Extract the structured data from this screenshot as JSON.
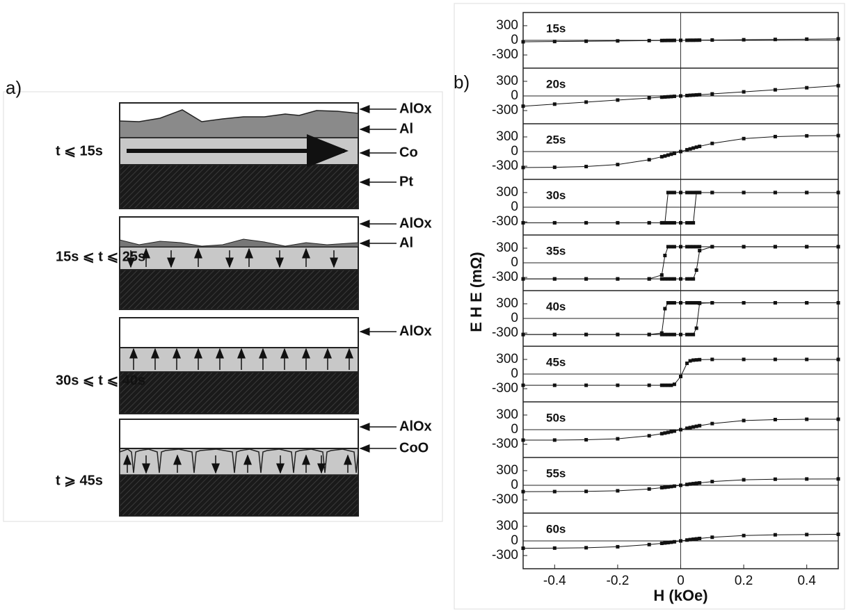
{
  "panel_a": {
    "label": "a)",
    "stacks": [
      {
        "condition": "t ⩽ 15s",
        "layers": [
          "AlOx",
          "Al",
          "Co",
          "Pt"
        ]
      },
      {
        "condition": "15s ⩽ t ⩽ 25s",
        "layers": [
          "AlOx",
          "Al"
        ]
      },
      {
        "condition": "30s ⩽ t ⩽ 40s",
        "layers": [
          "AlOx"
        ]
      },
      {
        "condition": "t ⩾ 45s",
        "layers": [
          "AlOx",
          "CoO"
        ]
      }
    ]
  },
  "chart_data": {
    "type": "line",
    "panel_label": "b)",
    "xlabel": "H (kOe)",
    "ylabel": "E H E (mΩ)",
    "xlim": [
      -0.5,
      0.5
    ],
    "xticks": [
      -0.4,
      -0.2,
      0,
      0.2,
      0.4
    ],
    "ylim": [
      -570,
      570
    ],
    "yticks": [
      300,
      0,
      -300
    ],
    "x": [
      -0.5,
      -0.4,
      -0.3,
      -0.2,
      -0.1,
      -0.06,
      -0.05,
      -0.04,
      -0.03,
      -0.02,
      0,
      0.02,
      0.03,
      0.04,
      0.05,
      0.06,
      0.1,
      0.2,
      0.3,
      0.4,
      0.5
    ],
    "panels": [
      {
        "label": "15s",
        "series": [
          {
            "color": "#111111",
            "values": [
              -30,
              -24,
              -18,
              -12,
              -6,
              -4,
              -3,
              -2,
              -2,
              -1,
              0,
              1,
              2,
              2,
              3,
              4,
              6,
              12,
              18,
              24,
              30
            ]
          }
        ]
      },
      {
        "label": "20s",
        "series": [
          {
            "color": "#111111",
            "values": [
              -210,
              -168,
              -126,
              -84,
              -42,
              -25,
              -21,
              -17,
              -13,
              -8,
              0,
              8,
              13,
              17,
              21,
              25,
              42,
              84,
              126,
              168,
              210
            ]
          }
        ]
      },
      {
        "label": "25s",
        "series": [
          {
            "color": "#111111",
            "values": [
              -327,
              -322,
              -307,
              -266,
              -167,
              -106,
              -90,
              -72,
              -54,
              -37,
              0,
              37,
              54,
              72,
              90,
              106,
              167,
              266,
              307,
              322,
              327
            ]
          }
        ]
      },
      {
        "label": "30s",
        "series": [
          {
            "color": "#111111",
            "values": [
              -320,
              -320,
              -320,
              -320,
              -320,
              -320,
              -320,
              -320,
              -320,
              -320,
              -320,
              -320,
              -320,
              -320,
              300,
              300,
              300,
              300,
              300,
              300,
              300
            ]
          },
          {
            "color": "#111111",
            "values": [
              -320,
              -320,
              -320,
              -320,
              -320,
              -320,
              -320,
              300,
              300,
              300,
              300,
              300,
              300,
              300,
              300,
              300,
              300,
              300,
              300,
              300,
              300
            ]
          }
        ]
      },
      {
        "label": "35s",
        "series": [
          {
            "color": "#111111",
            "values": [
              -330,
              -330,
              -330,
              -330,
              -330,
              -330,
              -330,
              -330,
              -330,
              -330,
              -330,
              -330,
              -330,
              -330,
              -150,
              250,
              330,
              330,
              330,
              330,
              330
            ]
          },
          {
            "color": "#111111",
            "values": [
              -330,
              -330,
              -330,
              -330,
              -330,
              -250,
              150,
              330,
              330,
              330,
              330,
              330,
              330,
              330,
              330,
              330,
              330,
              330,
              330,
              330,
              330
            ]
          }
        ]
      },
      {
        "label": "40s",
        "series": [
          {
            "color": "#111111",
            "values": [
              -330,
              -330,
              -330,
              -330,
              -330,
              -330,
              -330,
              -330,
              -330,
              -330,
              -330,
              -330,
              -330,
              -330,
              -200,
              310,
              320,
              320,
              320,
              320,
              320
            ]
          },
          {
            "color": "#111111",
            "values": [
              -330,
              -330,
              -330,
              -330,
              -330,
              -300,
              200,
              320,
              320,
              320,
              320,
              320,
              320,
              320,
              320,
              320,
              320,
              320,
              320,
              320,
              320
            ]
          }
        ]
      },
      {
        "label": "45s",
        "series": [
          {
            "color": "#111111",
            "values": [
              -230,
              -230,
              -230,
              -230,
              -230,
              -230,
              -230,
              -230,
              -230,
              -210,
              -50,
              220,
              270,
              285,
              290,
              295,
              300,
              300,
              300,
              300,
              300
            ]
          }
        ]
      },
      {
        "label": "50s",
        "series": [
          {
            "color": "#111111",
            "values": [
              -214,
              -213,
              -207,
              -187,
              -125,
              -82,
              -69,
              -56,
              -42,
              -29,
              0,
              29,
              42,
              56,
              69,
              82,
              125,
              187,
              207,
              213,
              214
            ]
          }
        ]
      },
      {
        "label": "55s",
        "series": [
          {
            "color": "#111111",
            "values": [
              -130,
              -129,
              -125,
              -113,
              -76,
              -49,
              -42,
              -34,
              -26,
              -17,
              0,
              17,
              26,
              34,
              42,
              49,
              76,
              113,
              125,
              129,
              130
            ]
          }
        ]
      },
      {
        "label": "60s",
        "series": [
          {
            "color": "#111111",
            "values": [
              -150,
              -147,
              -140,
              -120,
              -75,
              -50,
              -42,
              -35,
              -27,
              -18,
              0,
              18,
              27,
              35,
              42,
              50,
              75,
              110,
              125,
              130,
              135
            ]
          }
        ]
      }
    ]
  }
}
